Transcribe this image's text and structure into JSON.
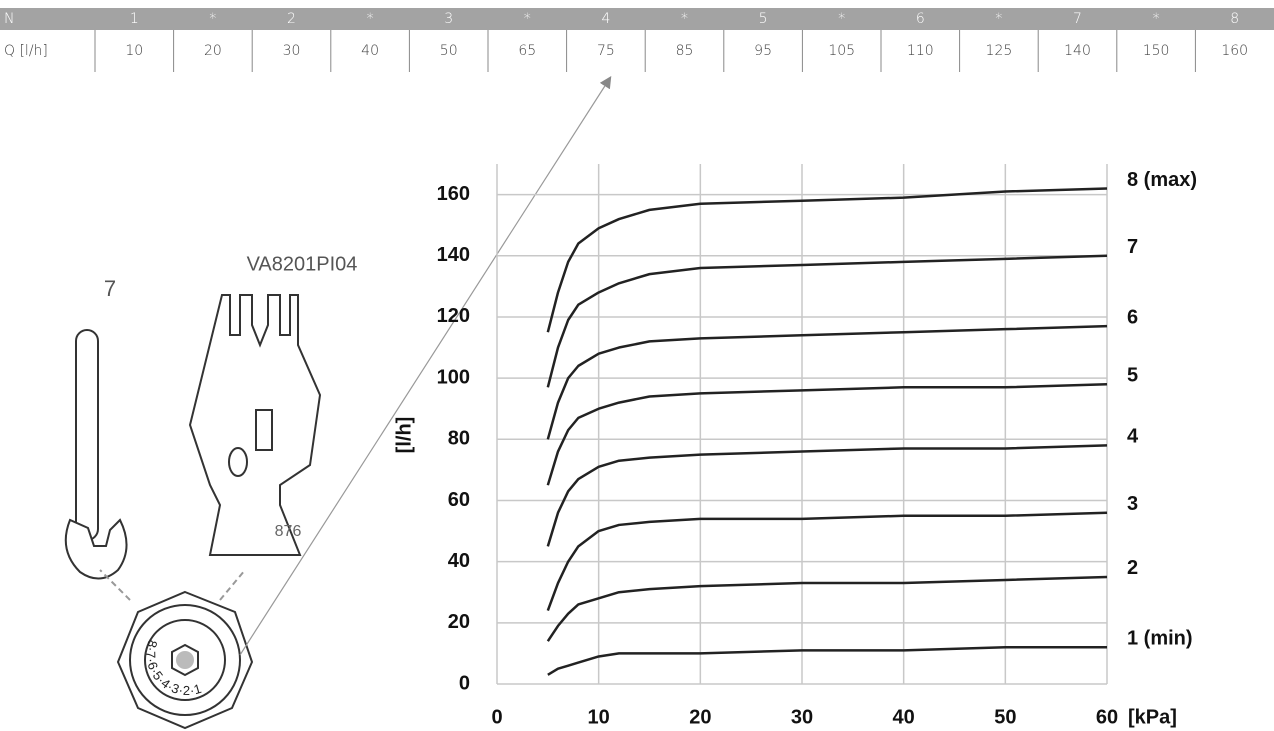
{
  "table": {
    "header": [
      "N",
      "1",
      "*",
      "2",
      "*",
      "3",
      "*",
      "4",
      "*",
      "5",
      "*",
      "6",
      "*",
      "7",
      "*",
      "8"
    ],
    "rows": [
      [
        "Q [l/h]",
        "10",
        "20",
        "30",
        "40",
        "50",
        "65",
        "75",
        "85",
        "95",
        "105",
        "110",
        "125",
        "140",
        "150",
        "160"
      ]
    ]
  },
  "illustration": {
    "wrench_label": "7",
    "key_label": "VA8201PI04",
    "key_digits": "876",
    "dial_digits": "8·7·6·5·4·3·2·1"
  },
  "chart_data": {
    "type": "line",
    "y_label": "[l/h]",
    "x_label": "[kPa]",
    "x": [
      5,
      6,
      7,
      8,
      10,
      12,
      15,
      20,
      30,
      40,
      50,
      60
    ],
    "xlim": [
      0,
      60
    ],
    "xticks": [
      0,
      10,
      20,
      30,
      40,
      50,
      60
    ],
    "ylim": [
      0,
      170
    ],
    "yticks": [
      0,
      20,
      40,
      60,
      80,
      100,
      120,
      140,
      160
    ],
    "grid": true,
    "series": [
      {
        "name": "8 (max)",
        "color": "#222222",
        "values": [
          115,
          128,
          138,
          144,
          149,
          152,
          155,
          157,
          158,
          159,
          161,
          162
        ]
      },
      {
        "name": "7",
        "color": "#222222",
        "values": [
          97,
          110,
          119,
          124,
          128,
          131,
          134,
          136,
          137,
          138,
          139,
          140
        ]
      },
      {
        "name": "6",
        "color": "#222222",
        "values": [
          80,
          92,
          100,
          104,
          108,
          110,
          112,
          113,
          114,
          115,
          116,
          117
        ]
      },
      {
        "name": "5",
        "color": "#222222",
        "values": [
          65,
          76,
          83,
          87,
          90,
          92,
          94,
          95,
          96,
          97,
          97,
          98
        ]
      },
      {
        "name": "4",
        "color": "#222222",
        "values": [
          45,
          56,
          63,
          67,
          71,
          73,
          74,
          75,
          76,
          77,
          77,
          78
        ]
      },
      {
        "name": "3",
        "color": "#222222",
        "values": [
          24,
          33,
          40,
          45,
          50,
          52,
          53,
          54,
          54,
          55,
          55,
          56
        ]
      },
      {
        "name": "2",
        "color": "#222222",
        "values": [
          14,
          19,
          23,
          26,
          28,
          30,
          31,
          32,
          33,
          33,
          34,
          35
        ]
      },
      {
        "name": "1 (min)",
        "color": "#222222",
        "values": [
          3,
          5,
          6,
          7,
          9,
          10,
          10,
          10,
          11,
          11,
          12,
          12
        ]
      }
    ]
  }
}
